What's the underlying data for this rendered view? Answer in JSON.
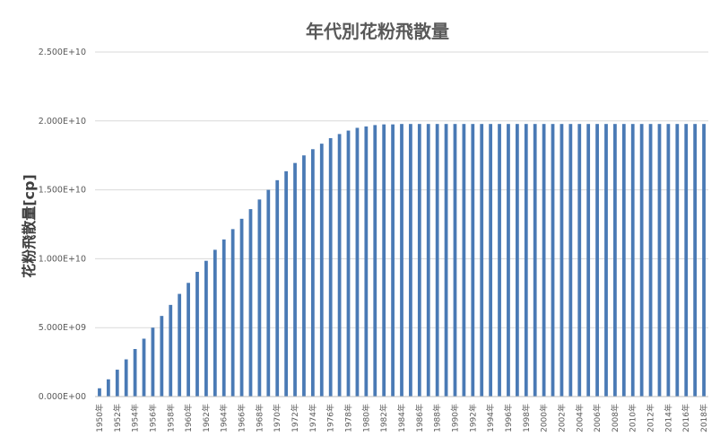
{
  "chart_data": {
    "type": "bar",
    "title": "年代別花粉飛散量",
    "xlabel": "",
    "ylabel": "花粉飛散量[cp]",
    "ylim": [
      0,
      25000000000
    ],
    "yticks": [
      0,
      5000000000,
      10000000000,
      15000000000,
      20000000000,
      25000000000
    ],
    "ytick_labels": [
      "0.000E+00",
      "5.000E+09",
      "1.000E+10",
      "1.500E+10",
      "2.000E+10",
      "2.500E+10"
    ],
    "grid": true,
    "legend": "none",
    "bar_color": "#4a7ab5",
    "grid_color": "#d9d9d9",
    "categories": [
      "1950年",
      "1951年",
      "1952年",
      "1953年",
      "1954年",
      "1955年",
      "1956年",
      "1957年",
      "1958年",
      "1959年",
      "1960年",
      "1961年",
      "1962年",
      "1963年",
      "1964年",
      "1965年",
      "1966年",
      "1967年",
      "1968年",
      "1969年",
      "1970年",
      "1971年",
      "1972年",
      "1973年",
      "1974年",
      "1975年",
      "1976年",
      "1977年",
      "1978年",
      "1979年",
      "1980年",
      "1981年",
      "1982年",
      "1983年",
      "1984年",
      "1985年",
      "1986年",
      "1987年",
      "1988年",
      "1989年",
      "1990年",
      "1991年",
      "1992年",
      "1993年",
      "1994年",
      "1995年",
      "1996年",
      "1997年",
      "1998年",
      "1999年",
      "2000年",
      "2001年",
      "2002年",
      "2003年",
      "2004年",
      "2005年",
      "2006年",
      "2007年",
      "2008年",
      "2009年",
      "2010年",
      "2011年",
      "2012年",
      "2013年",
      "2014年",
      "2015年",
      "2016年",
      "2017年",
      "2018年"
    ],
    "xtick_labels": [
      "1950年",
      "1952年",
      "1954年",
      "1956年",
      "1958年",
      "1960年",
      "1962年",
      "1964年",
      "1966年",
      "1968年",
      "1970年",
      "1972年",
      "1974年",
      "1976年",
      "1978年",
      "1980年",
      "1982年",
      "1984年",
      "1986年",
      "1988年",
      "1990年",
      "1992年",
      "1994年",
      "1996年",
      "1998年",
      "2000年",
      "2002年",
      "2004年",
      "2006年",
      "2008年",
      "2010年",
      "2012年",
      "2014年",
      "2016年",
      "2018年"
    ],
    "values": [
      600000000,
      1250000000,
      1950000000,
      2700000000,
      3450000000,
      4200000000,
      5000000000,
      5850000000,
      6650000000,
      7450000000,
      8250000000,
      9050000000,
      9850000000,
      10650000000,
      11400000000,
      12150000000,
      12900000000,
      13600000000,
      14300000000,
      15000000000,
      15700000000,
      16350000000,
      16950000000,
      17500000000,
      17950000000,
      18350000000,
      18750000000,
      19050000000,
      19300000000,
      19500000000,
      19600000000,
      19700000000,
      19750000000,
      19750000000,
      19780000000,
      19780000000,
      19780000000,
      19780000000,
      19780000000,
      19780000000,
      19780000000,
      19780000000,
      19780000000,
      19780000000,
      19780000000,
      19780000000,
      19780000000,
      19780000000,
      19780000000,
      19780000000,
      19780000000,
      19780000000,
      19780000000,
      19780000000,
      19780000000,
      19780000000,
      19780000000,
      19780000000,
      19780000000,
      19780000000,
      19780000000,
      19780000000,
      19780000000,
      19780000000,
      19780000000,
      19780000000,
      19780000000,
      19780000000,
      19780000000
    ]
  }
}
